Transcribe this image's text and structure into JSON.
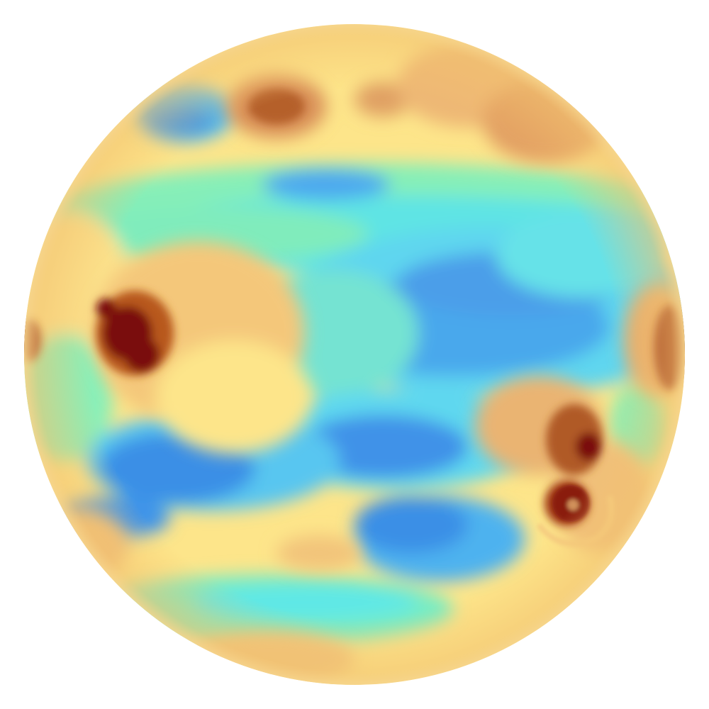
{
  "image": {
    "subject": "full-disk-earth",
    "colormap": [
      "#7a0d0d",
      "#b3541c",
      "#e0965a",
      "#f2c677",
      "#fff08a",
      "#8cf0b4",
      "#5ee8e6",
      "#55bdf2",
      "#3a8fe6"
    ],
    "background": "#ffffff"
  }
}
